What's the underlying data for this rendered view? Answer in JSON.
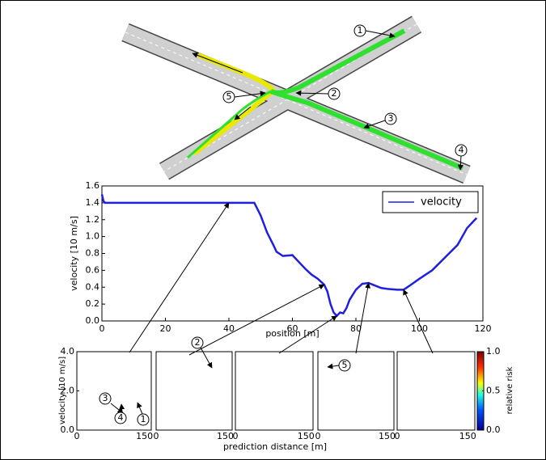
{
  "diagram": {
    "markers": [
      "1",
      "2",
      "3",
      "4",
      "5"
    ]
  },
  "chart_data": [
    {
      "type": "line",
      "xlabel": "position [m]",
      "ylabel": "velocity [10 m/s]",
      "series": [
        {
          "name": "velocity",
          "color": "#1f1fe0",
          "x": [
            0,
            0.5,
            1,
            10,
            20,
            30,
            40,
            48,
            50,
            52,
            54,
            55,
            57,
            60,
            62,
            64,
            66,
            68,
            70,
            71,
            72,
            73,
            74,
            75,
            76,
            77,
            78,
            80,
            82,
            84,
            86,
            88,
            90,
            93,
            95,
            97,
            100,
            104,
            108,
            112,
            115,
            118
          ],
          "values": [
            1.5,
            1.42,
            1.4,
            1.4,
            1.4,
            1.4,
            1.4,
            1.4,
            1.25,
            1.05,
            0.9,
            0.82,
            0.77,
            0.78,
            0.7,
            0.62,
            0.55,
            0.5,
            0.43,
            0.35,
            0.2,
            0.1,
            0.06,
            0.1,
            0.09,
            0.15,
            0.25,
            0.37,
            0.44,
            0.45,
            0.42,
            0.39,
            0.38,
            0.37,
            0.37,
            0.42,
            0.5,
            0.6,
            0.75,
            0.9,
            1.1,
            1.22
          ]
        }
      ],
      "xlim": [
        0,
        120
      ],
      "xticks": [
        0,
        20,
        40,
        60,
        80,
        100,
        120
      ],
      "ylim": [
        0,
        1.6
      ],
      "yticks": [
        {
          "value": 0,
          "label": "0.0"
        },
        {
          "value": 0.2,
          "label": "0.2"
        },
        {
          "value": 0.4,
          "label": "0.4"
        },
        {
          "value": 0.6,
          "label": "0.6"
        },
        {
          "value": 0.8,
          "label": "0.8"
        },
        {
          "value": 1.0,
          "label": "1.0"
        },
        {
          "value": 1.2,
          "label": "1.2"
        },
        {
          "value": 1.4,
          "label": "1.4"
        },
        {
          "value": 1.6,
          "label": "1.6"
        }
      ],
      "legend": "upper right"
    },
    {
      "type": "heatmap",
      "xlabel": "prediction distance [m]",
      "ylabel": "velocity [10 m/s]",
      "colorbar_label": "relative risk",
      "xlim": [
        0,
        165
      ],
      "xticks": [
        0,
        150
      ],
      "ylim": [
        0,
        4
      ],
      "yticks": [
        {
          "value": 0,
          "label": "0.0"
        },
        {
          "value": 2,
          "label": "2.0"
        },
        {
          "value": 4,
          "label": "4.0"
        }
      ],
      "clim": [
        0,
        1
      ],
      "cticks": [
        {
          "value": 0,
          "label": "0.0"
        },
        {
          "value": 0.5,
          "label": "0.5"
        },
        {
          "value": 1,
          "label": "1.0"
        }
      ]
    }
  ]
}
